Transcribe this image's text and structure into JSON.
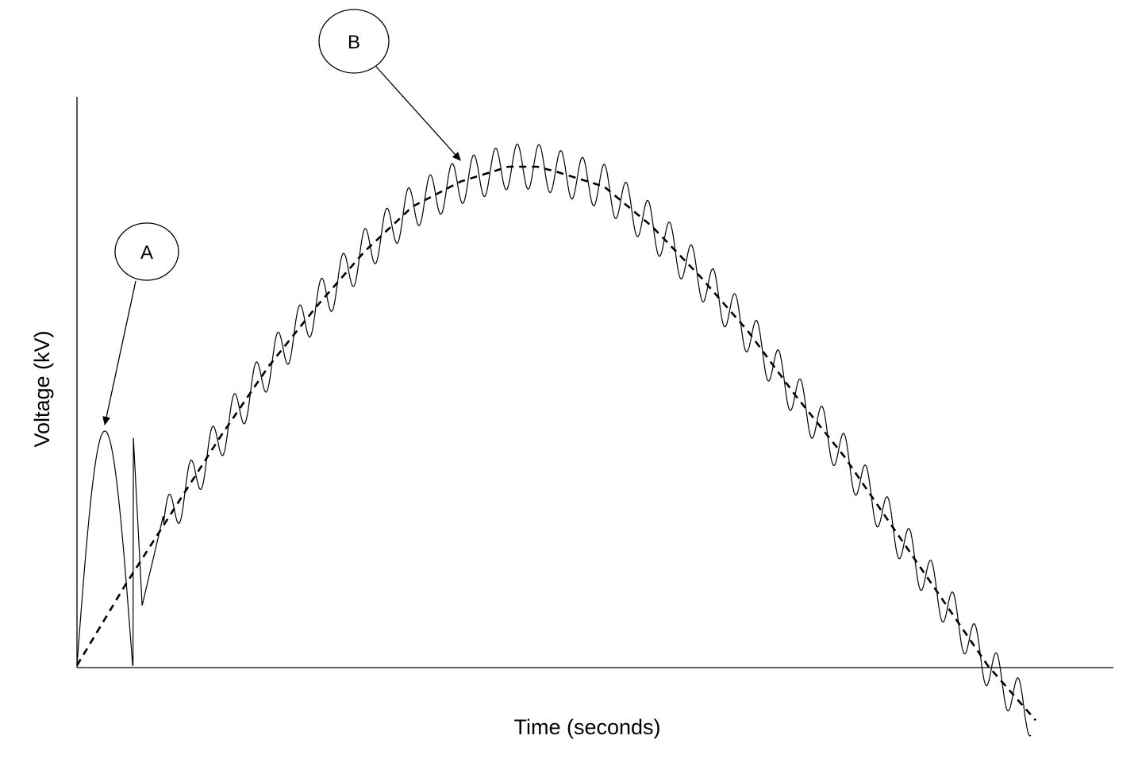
{
  "chart_data": {
    "type": "line",
    "title": "",
    "xlabel": "Time (seconds)",
    "ylabel": "Voltage (kV)",
    "xlim": [
      0,
      1
    ],
    "ylim": [
      -0.13,
      1.14
    ],
    "grid": false,
    "legend": "none",
    "series": [
      {
        "style": "dashed",
        "color": "#000000",
        "x": [
          0,
          0.05,
          0.1,
          0.15,
          0.2,
          0.25,
          0.3,
          0.35,
          0.4,
          0.45,
          0.48,
          0.5,
          0.55,
          0.6,
          0.65,
          0.7,
          0.75,
          0.8,
          0.85,
          0.9,
          0.95,
          1.0
        ],
        "y": [
          0,
          0.16,
          0.31,
          0.46,
          0.6,
          0.72,
          0.83,
          0.92,
          0.97,
          1.0,
          1.0,
          0.99,
          0.96,
          0.88,
          0.78,
          0.67,
          0.54,
          0.42,
          0.28,
          0.14,
          0.0,
          -0.11
        ]
      },
      {
        "style": "solid",
        "color": "#000000",
        "note_free": true,
        "x": [
          0,
          0.029,
          0.068,
          0.09,
          0.105,
          0.14,
          0.18,
          0.22,
          0.26,
          0.3,
          0.34,
          0.38,
          0.42,
          0.46,
          0.5,
          0.54,
          0.58,
          0.62,
          0.66,
          0.7,
          0.74,
          0.78,
          0.82,
          0.86,
          0.9,
          0.94,
          0.97,
          0.995
        ],
        "y": [
          0,
          0.47,
          0.12,
          0.3,
          0.35,
          0.47,
          0.6,
          0.73,
          0.83,
          0.91,
          0.97,
          1.0,
          1.03,
          1.04,
          1.01,
          0.98,
          0.92,
          0.84,
          0.75,
          0.66,
          0.56,
          0.46,
          0.35,
          0.24,
          0.14,
          0.03,
          -0.06,
          -0.12
        ]
      }
    ],
    "annotations": [
      {
        "label": "A",
        "x": 0.029,
        "y": 0.47
      },
      {
        "label": "B",
        "x": 0.4,
        "y": 1.0
      }
    ]
  }
}
